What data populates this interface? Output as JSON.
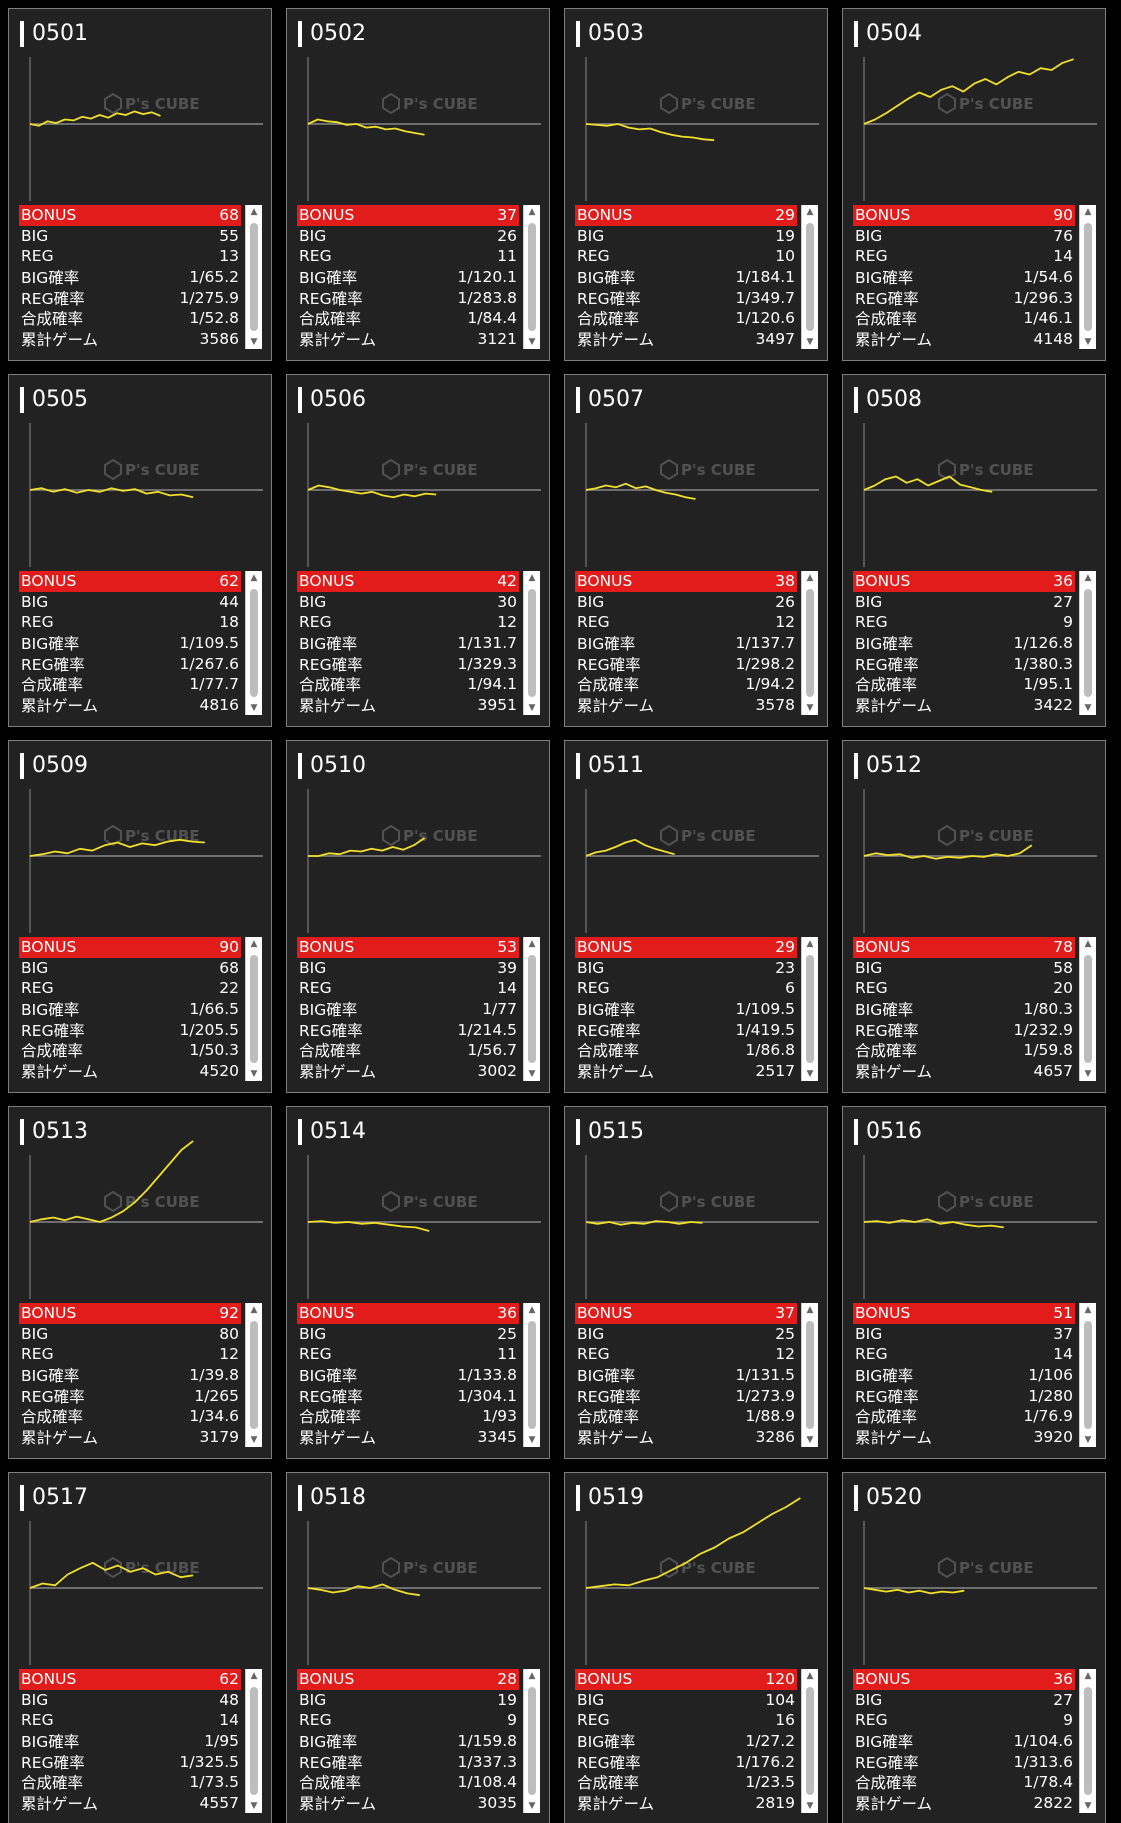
{
  "colors": {
    "card_bg": "#222222",
    "border": "#7d7d7d",
    "bonus_bg": "#e21b1b",
    "line": "#f0e02a",
    "baseline": "#888888"
  },
  "labels": {
    "bonus": "BONUS",
    "big": "BIG",
    "reg": "REG",
    "big_rate": "BIG確率",
    "reg_rate": "REG確率",
    "combined_rate": "合成確率",
    "total_games": "累計ゲーム"
  },
  "watermark": {
    "brand": "P's CUBE",
    "icon": "cube-logo-icon"
  },
  "machines": [
    {
      "id": "0501",
      "bonus": "68",
      "big": "55",
      "reg": "13",
      "big_rate": "1/65.2",
      "reg_rate": "1/275.9",
      "combined_rate": "1/52.8",
      "total_games": "3586",
      "trend": [
        0,
        -0.02,
        0.03,
        0.01,
        0.05,
        0.04,
        0.08,
        0.06,
        0.1,
        0.07,
        0.12,
        0.1,
        0.14,
        0.11,
        0.13,
        0.09
      ],
      "trend_end": 0.56
    },
    {
      "id": "0502",
      "bonus": "37",
      "big": "26",
      "reg": "11",
      "big_rate": "1/120.1",
      "reg_rate": "1/283.8",
      "combined_rate": "1/84.4",
      "total_games": "3121",
      "trend": [
        0,
        0.05,
        0.03,
        0.02,
        -0.01,
        0.0,
        -0.04,
        -0.03,
        -0.06,
        -0.05,
        -0.08,
        -0.1,
        -0.12
      ],
      "trend_end": 0.5
    },
    {
      "id": "0503",
      "bonus": "29",
      "big": "19",
      "reg": "10",
      "big_rate": "1/184.1",
      "reg_rate": "1/349.7",
      "combined_rate": "1/120.6",
      "total_games": "3497",
      "trend": [
        0,
        -0.01,
        -0.02,
        0.0,
        -0.04,
        -0.06,
        -0.05,
        -0.09,
        -0.12,
        -0.14,
        -0.15,
        -0.17,
        -0.18
      ],
      "trend_end": 0.55
    },
    {
      "id": "0504",
      "bonus": "90",
      "big": "76",
      "reg": "14",
      "big_rate": "1/54.6",
      "reg_rate": "1/296.3",
      "combined_rate": "1/46.1",
      "total_games": "4148",
      "trend": [
        0,
        0.05,
        0.12,
        0.2,
        0.28,
        0.35,
        0.3,
        0.38,
        0.42,
        0.36,
        0.45,
        0.5,
        0.44,
        0.52,
        0.58,
        0.55,
        0.62,
        0.6,
        0.68,
        0.72
      ],
      "trend_end": 0.9
    },
    {
      "id": "0505",
      "bonus": "62",
      "big": "44",
      "reg": "18",
      "big_rate": "1/109.5",
      "reg_rate": "1/267.6",
      "combined_rate": "1/77.7",
      "total_games": "4816",
      "trend": [
        0,
        0.02,
        -0.02,
        0.01,
        -0.03,
        0.0,
        -0.02,
        0.02,
        -0.01,
        0.01,
        -0.04,
        -0.02,
        -0.06,
        -0.05,
        -0.08
      ],
      "trend_end": 0.7
    },
    {
      "id": "0506",
      "bonus": "42",
      "big": "30",
      "reg": "12",
      "big_rate": "1/131.7",
      "reg_rate": "1/329.3",
      "combined_rate": "1/94.1",
      "total_games": "3951",
      "trend": [
        0,
        0.05,
        0.03,
        0.0,
        -0.02,
        -0.04,
        -0.02,
        -0.06,
        -0.08,
        -0.05,
        -0.07,
        -0.04,
        -0.05
      ],
      "trend_end": 0.55
    },
    {
      "id": "0507",
      "bonus": "38",
      "big": "26",
      "reg": "12",
      "big_rate": "1/137.7",
      "reg_rate": "1/298.2",
      "combined_rate": "1/94.2",
      "total_games": "3578",
      "trend": [
        0,
        0.02,
        0.05,
        0.03,
        0.07,
        0.02,
        0.04,
        0.0,
        -0.03,
        -0.05,
        -0.08,
        -0.1
      ],
      "trend_end": 0.47
    },
    {
      "id": "0508",
      "bonus": "36",
      "big": "27",
      "reg": "9",
      "big_rate": "1/126.8",
      "reg_rate": "1/380.3",
      "combined_rate": "1/95.1",
      "total_games": "3422",
      "trend": [
        0,
        0.05,
        0.12,
        0.15,
        0.08,
        0.12,
        0.05,
        0.1,
        0.15,
        0.06,
        0.03,
        0.0,
        -0.02
      ],
      "trend_end": 0.55
    },
    {
      "id": "0509",
      "bonus": "90",
      "big": "68",
      "reg": "22",
      "big_rate": "1/66.5",
      "reg_rate": "1/205.5",
      "combined_rate": "1/50.3",
      "total_games": "4520",
      "trend": [
        0,
        0.02,
        0.05,
        0.03,
        0.08,
        0.06,
        0.12,
        0.15,
        0.1,
        0.14,
        0.12,
        0.16,
        0.18,
        0.16,
        0.15
      ],
      "trend_end": 0.75
    },
    {
      "id": "0510",
      "bonus": "53",
      "big": "39",
      "reg": "14",
      "big_rate": "1/77",
      "reg_rate": "1/214.5",
      "combined_rate": "1/56.7",
      "total_games": "3002",
      "trend": [
        0,
        0.0,
        0.03,
        0.02,
        0.06,
        0.05,
        0.08,
        0.06,
        0.1,
        0.07,
        0.12,
        0.2
      ],
      "trend_end": 0.5
    },
    {
      "id": "0511",
      "bonus": "29",
      "big": "23",
      "reg": "6",
      "big_rate": "1/109.5",
      "reg_rate": "1/419.5",
      "combined_rate": "1/86.8",
      "total_games": "2517",
      "trend": [
        0,
        0.04,
        0.06,
        0.1,
        0.15,
        0.18,
        0.12,
        0.08,
        0.05,
        0.02
      ],
      "trend_end": 0.38
    },
    {
      "id": "0512",
      "bonus": "78",
      "big": "58",
      "reg": "20",
      "big_rate": "1/80.3",
      "reg_rate": "1/232.9",
      "combined_rate": "1/59.8",
      "total_games": "4657",
      "trend": [
        0,
        0.03,
        0.01,
        0.02,
        -0.02,
        0.0,
        -0.03,
        -0.01,
        -0.02,
        0.0,
        -0.01,
        0.02,
        0.0,
        0.03,
        0.12
      ],
      "trend_end": 0.72
    },
    {
      "id": "0513",
      "bonus": "92",
      "big": "80",
      "reg": "12",
      "big_rate": "1/39.8",
      "reg_rate": "1/265",
      "combined_rate": "1/34.6",
      "total_games": "3179",
      "trend": [
        0,
        0.03,
        0.05,
        0.02,
        0.06,
        0.03,
        0.0,
        0.05,
        0.12,
        0.22,
        0.35,
        0.5,
        0.65,
        0.8,
        0.9
      ],
      "trend_end": 0.7
    },
    {
      "id": "0514",
      "bonus": "36",
      "big": "25",
      "reg": "11",
      "big_rate": "1/133.8",
      "reg_rate": "1/304.1",
      "combined_rate": "1/93",
      "total_games": "3345",
      "trend": [
        0,
        0.01,
        -0.01,
        0.0,
        -0.02,
        -0.01,
        -0.03,
        -0.05,
        -0.06,
        -0.1
      ],
      "trend_end": 0.52
    },
    {
      "id": "0515",
      "bonus": "37",
      "big": "25",
      "reg": "12",
      "big_rate": "1/131.5",
      "reg_rate": "1/273.9",
      "combined_rate": "1/88.9",
      "total_games": "3286",
      "trend": [
        0,
        -0.02,
        0.0,
        -0.03,
        -0.01,
        -0.02,
        0.01,
        0.0,
        -0.02,
        0.0,
        -0.01
      ],
      "trend_end": 0.5
    },
    {
      "id": "0516",
      "bonus": "51",
      "big": "37",
      "reg": "14",
      "big_rate": "1/106",
      "reg_rate": "1/280",
      "combined_rate": "1/76.9",
      "total_games": "3920",
      "trend": [
        0,
        0.01,
        -0.01,
        0.02,
        0.0,
        0.03,
        -0.02,
        0.0,
        -0.03,
        -0.05,
        -0.04,
        -0.06
      ],
      "trend_end": 0.6
    },
    {
      "id": "0517",
      "bonus": "62",
      "big": "48",
      "reg": "14",
      "big_rate": "1/95",
      "reg_rate": "1/325.5",
      "combined_rate": "1/73.5",
      "total_games": "4557",
      "trend": [
        0,
        0.05,
        0.03,
        0.15,
        0.22,
        0.28,
        0.2,
        0.25,
        0.18,
        0.22,
        0.15,
        0.18,
        0.12,
        0.14
      ],
      "trend_end": 0.7
    },
    {
      "id": "0518",
      "bonus": "28",
      "big": "19",
      "reg": "9",
      "big_rate": "1/159.8",
      "reg_rate": "1/337.3",
      "combined_rate": "1/108.4",
      "total_games": "3035",
      "trend": [
        0,
        -0.02,
        -0.05,
        -0.03,
        0.02,
        0.0,
        0.04,
        -0.02,
        -0.06,
        -0.08
      ],
      "trend_end": 0.48
    },
    {
      "id": "0519",
      "bonus": "120",
      "big": "104",
      "reg": "16",
      "big_rate": "1/27.2",
      "reg_rate": "1/176.2",
      "combined_rate": "1/23.5",
      "total_games": "2819",
      "trend": [
        0,
        0.02,
        0.04,
        0.03,
        0.08,
        0.12,
        0.2,
        0.28,
        0.38,
        0.45,
        0.55,
        0.62,
        0.72,
        0.82,
        0.9,
        1.0
      ],
      "trend_end": 0.92
    },
    {
      "id": "0520",
      "bonus": "36",
      "big": "27",
      "reg": "9",
      "big_rate": "1/104.6",
      "reg_rate": "1/313.6",
      "combined_rate": "1/78.4",
      "total_games": "2822",
      "trend": [
        0,
        -0.02,
        -0.04,
        -0.02,
        -0.05,
        -0.03,
        -0.06,
        -0.04,
        -0.05,
        -0.03
      ],
      "trend_end": 0.43
    }
  ]
}
